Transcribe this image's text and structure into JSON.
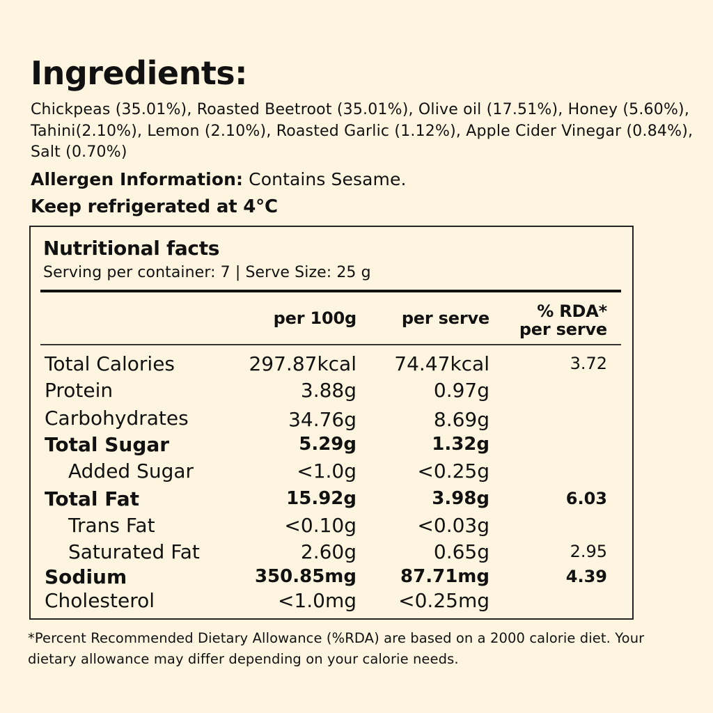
{
  "ingredients": {
    "title": "Ingredients:",
    "text": "Chickpeas (35.01%), Roasted Beetroot (35.01%), Olive oil (17.51%), Honey (5.60%), Tahini(2.10%), Lemon (2.10%), Roasted Garlic (1.12%), Apple Cider Vinegar (0.84%), Salt (0.70%)"
  },
  "allergen": {
    "label": "Allergen Information:",
    "value": "Contains Sesame."
  },
  "storage": "Keep refrigerated at 4°C",
  "nutrition": {
    "title": "Nutritional facts",
    "serving": "Serving per container: 7 | Serve Size: 25 g",
    "headers": {
      "per100": "per 100g",
      "perServe": "per serve",
      "rda_line1": "% RDA*",
      "rda_line2": "per serve"
    },
    "rows": [
      {
        "name": "Total Calories",
        "per100": "297.87kcal",
        "perServe": "74.47kcal",
        "rda": "3.72"
      },
      {
        "name": "Protein",
        "per100": "3.88g",
        "perServe": "0.97g",
        "rda": ""
      },
      {
        "name": "Carbohydrates",
        "per100": "34.76g",
        "perServe": "8.69g",
        "rda": ""
      },
      {
        "name": "Total Sugar",
        "per100": "5.29g",
        "perServe": "1.32g",
        "rda": ""
      },
      {
        "name": "Added Sugar",
        "per100": "<1.0g",
        "perServe": "<0.25g",
        "rda": ""
      },
      {
        "name": "Total Fat",
        "per100": "15.92g",
        "perServe": "3.98g",
        "rda": "6.03"
      },
      {
        "name": "Trans Fat",
        "per100": "<0.10g",
        "perServe": "<0.03g",
        "rda": ""
      },
      {
        "name": "Saturated Fat",
        "per100": "2.60g",
        "perServe": "0.65g",
        "rda": "2.95"
      },
      {
        "name": "Sodium",
        "per100": "350.85mg",
        "perServe": "87.71mg",
        "rda": "4.39"
      },
      {
        "name": "Cholesterol",
        "per100": "<1.0mg",
        "perServe": "<0.25mg",
        "rda": ""
      }
    ]
  },
  "footnote": "*Percent Recommended Dietary Allowance (%RDA) are based on a 2000 calorie diet. Your dietary allowance may differ depending on your calorie needs."
}
